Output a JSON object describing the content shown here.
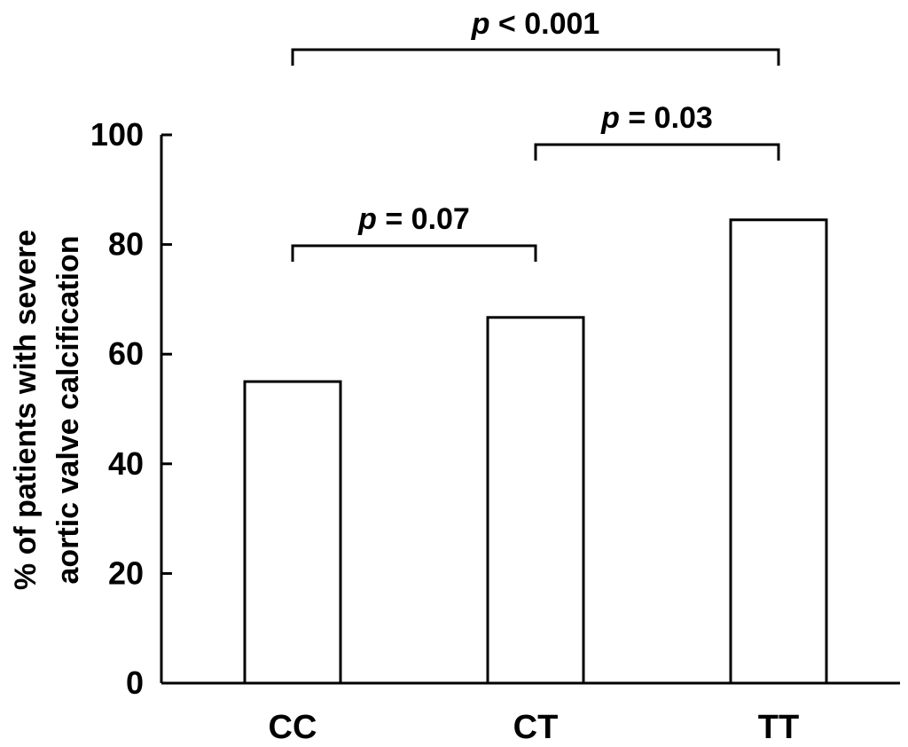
{
  "chart_data": {
    "type": "bar",
    "categories": [
      "CC",
      "CT",
      "TT"
    ],
    "values": [
      55,
      66.7,
      84.5
    ],
    "title": "",
    "xlabel": "",
    "ylabel": [
      "% of patients with severe",
      "aortic valve calcification"
    ],
    "ylim": [
      0,
      100
    ],
    "yticks": [
      0,
      20,
      40,
      60,
      80,
      100
    ],
    "grid": false,
    "legend": "none",
    "bar_fill": "#ffffff",
    "bar_stroke": "#000000",
    "significance": [
      {
        "from": "CC",
        "to": "CT",
        "p_symbol": "p",
        "relation": " = 0.07"
      },
      {
        "from": "CT",
        "to": "TT",
        "p_symbol": "p",
        "relation": " = 0.03"
      },
      {
        "from": "CC",
        "to": "TT",
        "p_symbol": "p",
        "relation": " < 0.001"
      }
    ]
  }
}
